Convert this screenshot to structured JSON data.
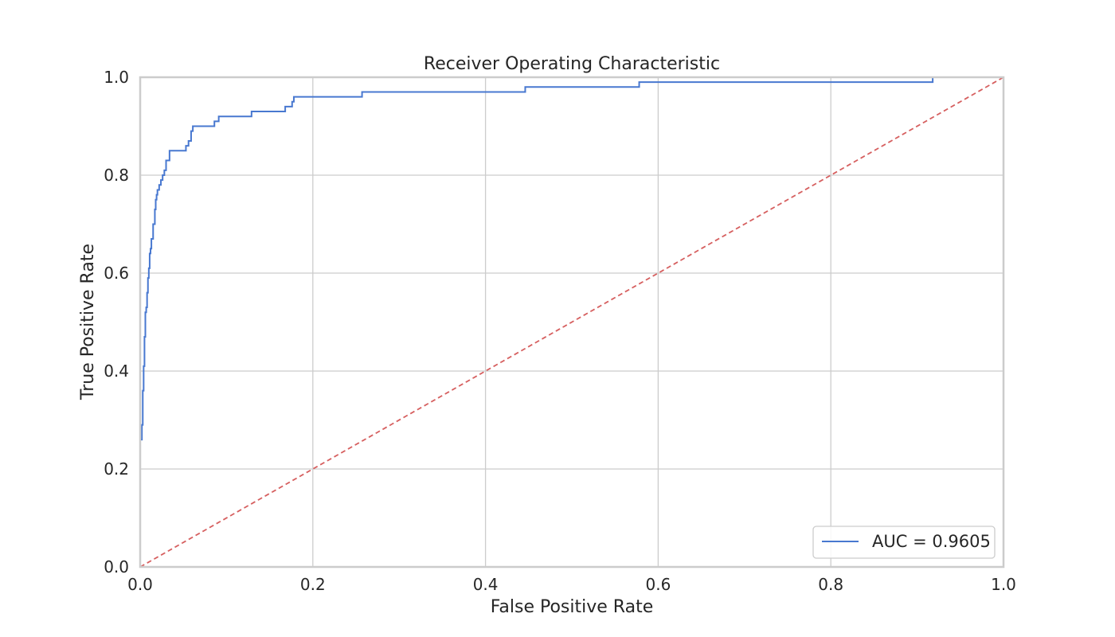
{
  "chart_data": {
    "type": "line",
    "title": "Receiver Operating Characteristic",
    "xlabel": "False Positive Rate",
    "ylabel": "True Positive Rate",
    "xlim": [
      0.0,
      1.0
    ],
    "ylim": [
      0.0,
      1.0
    ],
    "xticks": [
      "0.0",
      "0.2",
      "0.4",
      "0.6",
      "0.8",
      "1.0"
    ],
    "yticks": [
      "0.0",
      "0.2",
      "0.4",
      "0.6",
      "0.8",
      "1.0"
    ],
    "grid": true,
    "legend_position": "lower-right",
    "series": [
      {
        "name": "AUC = 0.9605",
        "color": "#4878d0",
        "style": "solid",
        "step": true,
        "x": [
          0.0,
          0.0,
          0.002,
          0.002,
          0.003,
          0.003,
          0.004,
          0.004,
          0.005,
          0.005,
          0.006,
          0.006,
          0.007,
          0.007,
          0.008,
          0.008,
          0.009,
          0.009,
          0.01,
          0.01,
          0.011,
          0.011,
          0.012,
          0.012,
          0.013,
          0.013,
          0.015,
          0.015,
          0.017,
          0.017,
          0.018,
          0.018,
          0.019,
          0.019,
          0.02,
          0.02,
          0.022,
          0.022,
          0.024,
          0.024,
          0.026,
          0.026,
          0.028,
          0.028,
          0.03,
          0.03,
          0.034,
          0.034,
          0.037,
          0.037,
          0.053,
          0.053,
          0.056,
          0.056,
          0.059,
          0.059,
          0.061,
          0.061,
          0.086,
          0.086,
          0.091,
          0.091,
          0.129,
          0.129,
          0.168,
          0.168,
          0.176,
          0.176,
          0.178,
          0.178,
          0.257,
          0.257,
          0.446,
          0.446,
          0.578,
          0.578,
          0.918,
          0.918,
          1.0
        ],
        "y": [
          0.0,
          0.26,
          0.26,
          0.29,
          0.29,
          0.36,
          0.36,
          0.41,
          0.41,
          0.47,
          0.47,
          0.52,
          0.52,
          0.53,
          0.53,
          0.56,
          0.56,
          0.59,
          0.59,
          0.61,
          0.61,
          0.64,
          0.64,
          0.65,
          0.65,
          0.67,
          0.67,
          0.7,
          0.7,
          0.73,
          0.73,
          0.75,
          0.75,
          0.76,
          0.76,
          0.77,
          0.77,
          0.78,
          0.78,
          0.79,
          0.79,
          0.8,
          0.8,
          0.81,
          0.81,
          0.83,
          0.83,
          0.85,
          0.85,
          0.85,
          0.85,
          0.86,
          0.86,
          0.87,
          0.87,
          0.89,
          0.89,
          0.9,
          0.9,
          0.91,
          0.91,
          0.92,
          0.92,
          0.93,
          0.93,
          0.94,
          0.94,
          0.95,
          0.95,
          0.96,
          0.96,
          0.97,
          0.97,
          0.98,
          0.98,
          0.99,
          0.99,
          1.0,
          1.0
        ]
      },
      {
        "color": "#d65f5f",
        "style": "dashed",
        "x": [
          0.0,
          1.0
        ],
        "y": [
          0.0,
          1.0
        ]
      }
    ]
  }
}
